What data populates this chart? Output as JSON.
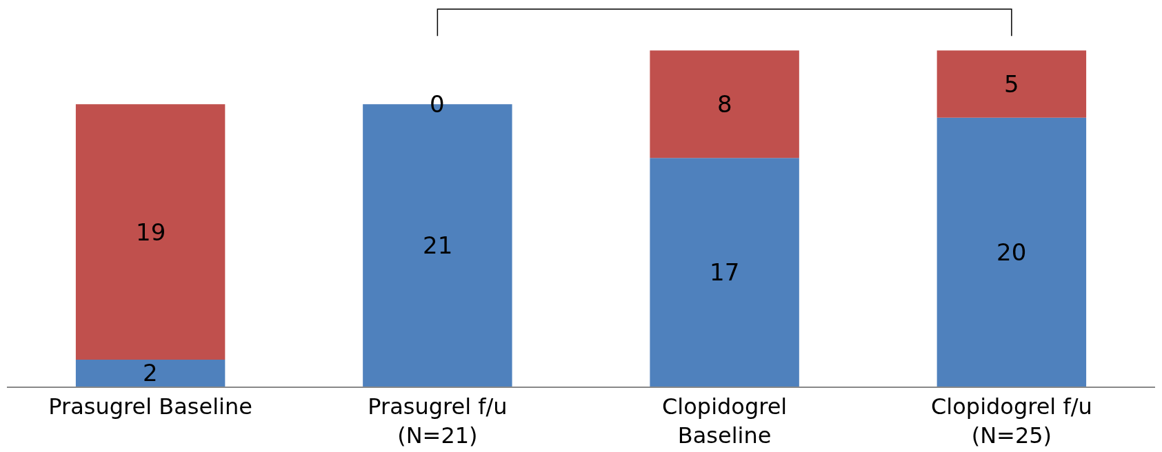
{
  "chart_data": {
    "type": "bar",
    "stacked": true,
    "data_labels": true,
    "tick_labels": "x",
    "categories": [
      "Prasugrel Baseline",
      "Prasugrel f/u\n(N=21)",
      "Clopidogrel\nBaseline",
      "Clopidogrel f/u\n(N=25)"
    ],
    "series": [
      {
        "color": "#4f81bd",
        "values": [
          2,
          21,
          17,
          20
        ]
      },
      {
        "color": "#c0504d",
        "values": [
          19,
          0,
          8,
          5
        ]
      }
    ]
  }
}
